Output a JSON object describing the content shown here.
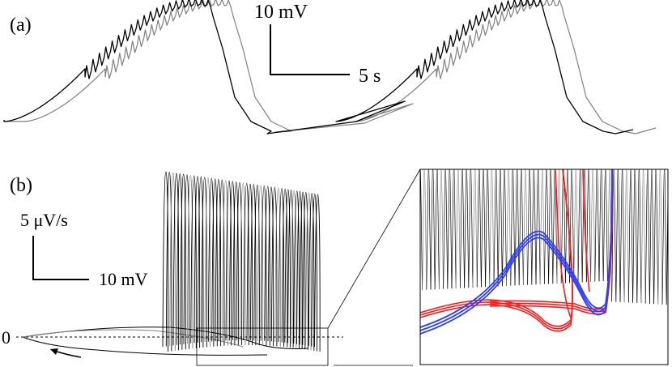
{
  "panel_a": {
    "label": "(a)",
    "scalebar_v": "10 mV",
    "scalebar_h": "5 s"
  },
  "panel_b": {
    "label": "(b)",
    "scalebar_v": "5 μV/s",
    "scalebar_h": "10 mV",
    "zero_label": "0"
  },
  "colors": {
    "trace_black": "#000000",
    "trace_gray": "#808080",
    "inset_red": "#ff1a1a",
    "inset_blue": "#2a3cff"
  },
  "chart_data": [
    {
      "type": "line",
      "title": "",
      "xlabel": "",
      "ylabel": "",
      "description_of_axes": "time series of membrane voltage; scale bars 10 mV and 5 s",
      "series": [
        {
          "color": "black",
          "bursts": 2,
          "spikes_per_burst": 20
        },
        {
          "color": "gray",
          "bursts": 2,
          "spikes_per_burst": 20
        }
      ]
    },
    {
      "type": "line",
      "title": "",
      "xlabel": "",
      "ylabel": "",
      "description_of_axes": "phase portrait dV/dt vs V; scale bars 5 μV/s and 10 mV; dashed line at 0",
      "series": [
        {
          "color": "black",
          "spikes": 45
        }
      ]
    },
    {
      "type": "line",
      "title": "",
      "xlabel": "",
      "ylabel": "",
      "description_of_axes": "zoomed inset of phase portrait near dV/dt = 0",
      "series": [
        {
          "color": "black"
        },
        {
          "color": "red"
        },
        {
          "color": "blue"
        }
      ]
    }
  ]
}
